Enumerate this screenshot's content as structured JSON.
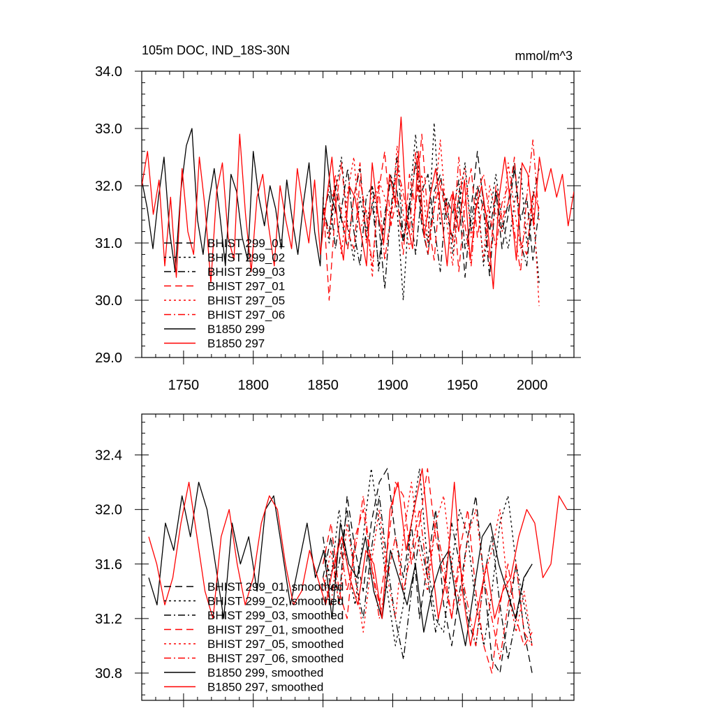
{
  "chart_data": [
    {
      "type": "line",
      "title": "105m DOC, IND_18S-30N",
      "units": "mmol/m^3",
      "xlim": [
        1720,
        2030
      ],
      "ylim": [
        29.0,
        34.0
      ],
      "x_ticks": [
        1750,
        1800,
        1850,
        1900,
        1950,
        2000
      ],
      "y_ticks": [
        29.0,
        30.0,
        31.0,
        32.0,
        33.0,
        34.0
      ],
      "y_tick_labels": [
        "29.0",
        "30.0",
        "31.0",
        "32.0",
        "33.0",
        "34.0"
      ],
      "legend_position": "bottom-left",
      "series": [
        {
          "name": "BHIST 299_01",
          "color": "#000000",
          "dash": "dashed",
          "x_range": [
            1850,
            2005
          ],
          "y_points": [
            31.6,
            31.2,
            32.0,
            31.4,
            30.9,
            31.8,
            32.3,
            31.1,
            31.7,
            30.6,
            31.5,
            32.1,
            31.9,
            31.0,
            31.6,
            32.4,
            31.3,
            30.8,
            31.9,
            32.2,
            31.5,
            31.1,
            31.8,
            30.4,
            31.6,
            32.6,
            31.7,
            31.2,
            31.9,
            30.9,
            31.5,
            32.3,
            31.4,
            31.8,
            30.7,
            31.6
          ]
        },
        {
          "name": "BHIST 299_02",
          "color": "#000000",
          "dash": "dotted",
          "x_range": [
            1850,
            2005
          ],
          "y_points": [
            31.7,
            31.0,
            31.9,
            32.5,
            31.3,
            30.7,
            31.8,
            31.2,
            32.0,
            30.5,
            31.4,
            32.2,
            31.6,
            30.0,
            31.7,
            32.9,
            31.5,
            31.0,
            33.1,
            31.3,
            31.8,
            30.8,
            31.6,
            32.4,
            31.2,
            31.9,
            30.6,
            31.5,
            32.2,
            31.4,
            30.9,
            31.7,
            32.3,
            31.0,
            31.5,
            30.3
          ]
        },
        {
          "name": "BHIST 299_03",
          "color": "#000000",
          "dash": "dashdot",
          "x_range": [
            1850,
            2005
          ],
          "y_points": [
            31.5,
            31.9,
            30.9,
            31.6,
            32.3,
            31.2,
            30.6,
            31.8,
            32.0,
            31.4,
            30.2,
            31.6,
            32.5,
            31.1,
            31.7,
            30.8,
            31.9,
            32.2,
            31.3,
            30.5,
            31.8,
            31.5,
            32.1,
            30.9,
            31.4,
            32.0,
            31.6,
            30.4,
            31.9,
            31.2,
            31.7,
            32.4,
            31.0,
            30.6,
            31.8,
            32.3
          ]
        },
        {
          "name": "BHIST 297_01",
          "color": "#ff0000",
          "dash": "dashed",
          "x_range": [
            1850,
            2005
          ],
          "y_points": [
            31.8,
            30.0,
            31.6,
            32.4,
            31.2,
            30.9,
            32.1,
            31.5,
            30.6,
            31.9,
            32.6,
            31.3,
            31.8,
            30.8,
            32.2,
            31.6,
            32.9,
            31.4,
            30.7,
            32.0,
            31.5,
            31.9,
            30.5,
            31.7,
            32.3,
            31.1,
            31.8,
            30.6,
            32.0,
            31.4,
            31.7,
            32.5,
            31.0,
            30.8,
            31.9,
            31.6
          ]
        },
        {
          "name": "BHIST 297_05",
          "color": "#ff0000",
          "dash": "dotted",
          "x_range": [
            1850,
            2005
          ],
          "y_points": [
            31.4,
            32.0,
            31.7,
            30.8,
            31.9,
            32.5,
            31.2,
            31.6,
            30.4,
            32.1,
            31.8,
            31.3,
            32.7,
            31.5,
            30.9,
            31.7,
            32.2,
            31.0,
            31.6,
            32.8,
            31.4,
            30.6,
            31.9,
            32.3,
            31.1,
            31.7,
            30.7,
            32.0,
            31.5,
            31.2,
            32.4,
            31.6,
            30.9,
            31.3,
            31.8,
            29.9
          ]
        },
        {
          "name": "BHIST 297_06",
          "color": "#ff0000",
          "dash": "dashdot",
          "x_range": [
            1850,
            2005
          ],
          "y_points": [
            31.6,
            31.1,
            32.2,
            31.5,
            30.9,
            31.8,
            32.4,
            31.0,
            31.7,
            32.0,
            30.7,
            31.5,
            32.3,
            31.9,
            31.2,
            32.6,
            31.4,
            30.8,
            31.6,
            32.1,
            31.7,
            31.0,
            32.5,
            31.3,
            30.6,
            31.9,
            32.2,
            31.5,
            30.9,
            31.7,
            32.0,
            31.2,
            30.5,
            31.8,
            32.8,
            31.4
          ]
        },
        {
          "name": "B1850 299",
          "color": "#000000",
          "dash": "solid",
          "x_range": [
            1720,
            1860
          ],
          "y_points": [
            32.1,
            31.6,
            30.9,
            31.8,
            32.5,
            31.2,
            30.5,
            31.9,
            32.7,
            33.0,
            31.4,
            30.8,
            31.7,
            32.3,
            31.5,
            30.6,
            32.2,
            31.9,
            31.1,
            30.7,
            32.6,
            31.8,
            31.3,
            32.0,
            31.6,
            30.9,
            32.1,
            31.4,
            30.8,
            31.7,
            32.4,
            31.2,
            30.6,
            32.7,
            31.8,
            31.5
          ]
        },
        {
          "name": "B1850 297",
          "color": "#ff0000",
          "dash": "solid",
          "x_range": [
            1720,
            2030
          ],
          "y_points": [
            32.0,
            32.6,
            31.5,
            32.1,
            30.6,
            31.8,
            30.4,
            32.3,
            31.2,
            30.8,
            32.5,
            31.6,
            30.3,
            31.9,
            32.4,
            31.1,
            30.7,
            32.9,
            31.5,
            30.5,
            31.8,
            32.2,
            31.3,
            30.6,
            32.0,
            31.4,
            30.9,
            32.3,
            31.6,
            31.0,
            32.1,
            30.8,
            31.7,
            32.5,
            31.3,
            30.7,
            32.0,
            31.8,
            31.2,
            30.6,
            32.4,
            31.5,
            31.0,
            32.2,
            31.7,
            33.2,
            31.4,
            30.9,
            32.6,
            31.1,
            31.8,
            32.3,
            31.5,
            30.6,
            31.9,
            31.2,
            32.1,
            30.7,
            31.6,
            32.0,
            31.3,
            30.2,
            31.8,
            32.5,
            31.7,
            30.7,
            32.4,
            32.2,
            31.3,
            32.5,
            31.9,
            32.3,
            31.8,
            32.2,
            31.3,
            31.9
          ]
        }
      ]
    },
    {
      "type": "line",
      "xlim": [
        1720,
        2030
      ],
      "ylim": [
        30.6,
        32.7
      ],
      "x_ticks": [
        1750,
        1800,
        1850,
        1900,
        1950,
        2000
      ],
      "y_ticks": [
        30.8,
        31.2,
        31.6,
        32.0,
        32.4
      ],
      "y_tick_labels": [
        "30.8",
        "31.2",
        "31.6",
        "32.0",
        "32.4"
      ],
      "legend_position": "bottom-left",
      "series": [
        {
          "name": "BHIST 299_01, smoothed",
          "color": "#000000",
          "dash": "dashed",
          "x_range": [
            1850,
            2000
          ],
          "y_points": [
            31.5,
            31.8,
            31.3,
            32.1,
            31.7,
            31.4,
            31.9,
            32.2,
            32.3,
            31.8,
            31.5,
            31.9,
            31.2,
            31.6,
            32.0,
            31.3,
            31.0,
            31.4,
            31.8,
            32.1,
            31.5,
            30.9,
            30.8,
            31.2,
            31.6,
            31.1,
            30.8
          ]
        },
        {
          "name": "BHIST 299_02, smoothed",
          "color": "#000000",
          "dash": "dotted",
          "x_range": [
            1850,
            2000
          ],
          "y_points": [
            31.7,
            31.5,
            32.0,
            31.6,
            31.3,
            31.8,
            32.3,
            31.9,
            31.4,
            31.0,
            31.3,
            31.9,
            32.3,
            31.6,
            31.2,
            31.1,
            31.6,
            32.0,
            31.8,
            31.3,
            31.0,
            31.4,
            31.9,
            32.1,
            31.6,
            31.3,
            31.0
          ]
        },
        {
          "name": "BHIST 299_03, smoothed",
          "color": "#000000",
          "dash": "dashdot",
          "x_range": [
            1850,
            2000
          ],
          "y_points": [
            31.8,
            31.4,
            31.6,
            32.0,
            31.5,
            31.2,
            31.7,
            32.1,
            31.6,
            31.2,
            30.9,
            31.4,
            31.8,
            31.5,
            31.1,
            31.4,
            31.9,
            31.6,
            31.2,
            31.0,
            31.5,
            31.8,
            31.3,
            30.9,
            31.2,
            31.5,
            31.6
          ]
        },
        {
          "name": "BHIST 297_01, smoothed",
          "color": "#ff0000",
          "dash": "dashed",
          "x_range": [
            1850,
            2000
          ],
          "y_points": [
            31.6,
            31.9,
            31.4,
            31.2,
            31.8,
            32.0,
            31.6,
            31.3,
            31.7,
            32.2,
            32.1,
            31.6,
            31.9,
            32.3,
            31.8,
            31.5,
            31.2,
            31.7,
            32.0,
            31.4,
            31.0,
            30.8,
            31.3,
            31.6,
            31.2,
            31.0,
            31.1
          ]
        },
        {
          "name": "BHIST 297_05, smoothed",
          "color": "#ff0000",
          "dash": "dotted",
          "x_range": [
            1850,
            2000
          ],
          "y_points": [
            31.4,
            31.7,
            31.3,
            31.9,
            31.5,
            31.1,
            31.6,
            32.0,
            31.5,
            31.2,
            31.8,
            32.2,
            31.7,
            31.4,
            31.9,
            32.1,
            31.6,
            31.3,
            31.8,
            32.0,
            31.5,
            31.7,
            32.0,
            31.4,
            31.1,
            31.4,
            31.0
          ]
        },
        {
          "name": "BHIST 297_06, smoothed",
          "color": "#ff0000",
          "dash": "dashdot",
          "x_range": [
            1850,
            2000
          ],
          "y_points": [
            31.5,
            31.3,
            31.8,
            31.4,
            31.7,
            32.1,
            31.6,
            31.2,
            31.5,
            31.8,
            31.4,
            31.7,
            32.0,
            31.5,
            31.9,
            31.6,
            31.2,
            31.6,
            31.3,
            31.0,
            31.5,
            31.2,
            30.9,
            31.3,
            31.6,
            31.1,
            31.0
          ]
        },
        {
          "name": "B1850 299, smoothed",
          "color": "#000000",
          "dash": "solid",
          "x_range": [
            1725,
            2000
          ],
          "y_points": [
            31.5,
            31.3,
            31.9,
            31.7,
            32.1,
            31.8,
            32.2,
            32.0,
            31.6,
            31.2,
            31.9,
            31.6,
            31.8,
            31.4,
            32.0,
            32.1,
            31.7,
            31.3,
            31.6,
            31.9,
            31.5,
            31.7,
            31.2,
            31.9,
            31.6,
            31.5,
            31.8,
            31.4,
            31.2,
            31.7,
            31.5,
            31.3,
            31.6,
            31.1,
            31.4,
            31.6,
            31.7,
            31.3,
            31.0,
            31.4,
            31.8,
            31.9,
            31.6,
            31.4,
            31.2,
            31.5,
            31.6
          ]
        },
        {
          "name": "B1850 297, smoothed",
          "color": "#ff0000",
          "dash": "solid",
          "x_range": [
            1725,
            2025
          ],
          "y_points": [
            31.8,
            31.6,
            31.3,
            31.5,
            31.9,
            32.2,
            31.8,
            31.4,
            31.2,
            31.8,
            32.0,
            31.6,
            31.3,
            31.5,
            31.9,
            32.1,
            32.0,
            31.6,
            31.3,
            31.4,
            31.7,
            31.5,
            31.3,
            31.6,
            31.8,
            31.5,
            31.3,
            31.7,
            31.6,
            31.2,
            32.0,
            32.2,
            31.7,
            32.0,
            32.3,
            31.7,
            31.2,
            31.5,
            32.2,
            31.4,
            31.0,
            31.3,
            31.6,
            31.2,
            31.4,
            31.5,
            31.8,
            32.0,
            31.9,
            31.5,
            31.6,
            32.1,
            32.0
          ]
        }
      ]
    }
  ]
}
